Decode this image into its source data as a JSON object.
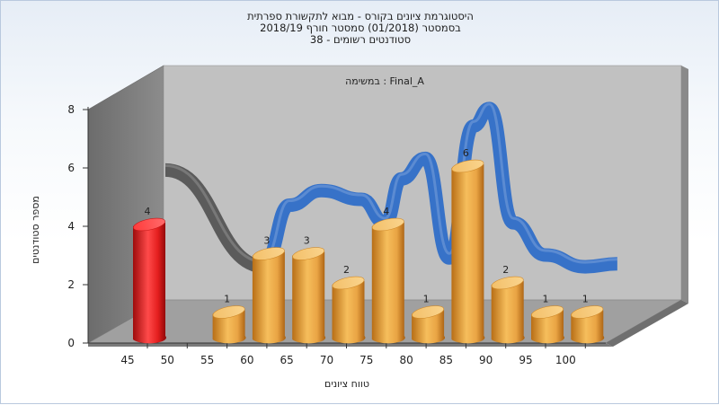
{
  "chart_title": {
    "line1": "היסטוגרמת ציונים בקורס - מבוא לתקשורת ספרתית",
    "line2": "בסמסטר  (01/2018)  סמסטר חורף 2018/19",
    "line3": "סטודנטים רשומים - 38"
  },
  "chart_data": {
    "type": "bar",
    "title": "היסטוגרמת ציונים בקורס - מבוא לתקשורת ספרתית",
    "subtitle": [
      "בסמסטר  (01/2018)  סמסטר חורף 2018/19",
      "סטודנטים רשומים - 38"
    ],
    "annotation": "במשימה : Final_A",
    "xlabel": "טווח ציונים",
    "ylabel": "מספר סטודנטים",
    "x_ticks": [
      "45",
      "50",
      "55",
      "60",
      "65",
      "70",
      "75",
      "80",
      "85",
      "90",
      "95",
      "100"
    ],
    "y_ticks": [
      0,
      2,
      4,
      6,
      8
    ],
    "ylim": [
      0,
      8
    ],
    "grid": false,
    "series": [
      {
        "color": "#e21e1e",
        "points": [
          {
            "x": 45,
            "y": 4,
            "label": "4"
          }
        ]
      },
      {
        "color": "#eeaa44",
        "points": [
          {
            "x": 55,
            "y": 1,
            "label": "1"
          },
          {
            "x": 60,
            "y": 3,
            "label": "3"
          },
          {
            "x": 65,
            "y": 3,
            "label": "3"
          },
          {
            "x": 70,
            "y": 2,
            "label": "2"
          },
          {
            "x": 75,
            "y": 4,
            "label": "4"
          },
          {
            "x": 80,
            "y": 1,
            "label": "1"
          },
          {
            "x": 85,
            "y": 6,
            "label": "6"
          },
          {
            "x": 90,
            "y": 2,
            "label": "2"
          },
          {
            "x": 95,
            "y": 1,
            "label": "1"
          },
          {
            "x": 100,
            "y": 1,
            "label": "1"
          }
        ]
      }
    ],
    "trend_lines": [
      {
        "color": "#555555",
        "x": [
          47.5,
          60
        ],
        "y": [
          4.8,
          1.5
        ]
      },
      {
        "color": "#2f6ec8",
        "x": [
          60,
          63,
          67,
          72,
          75,
          77,
          80,
          83,
          86,
          88,
          91,
          95,
          100,
          104
        ],
        "y": [
          1.7,
          3.6,
          4.1,
          3.8,
          3.0,
          4.5,
          5.2,
          1.8,
          6.3,
          6.9,
          3.0,
          1.9,
          1.5,
          1.6
        ]
      }
    ]
  }
}
